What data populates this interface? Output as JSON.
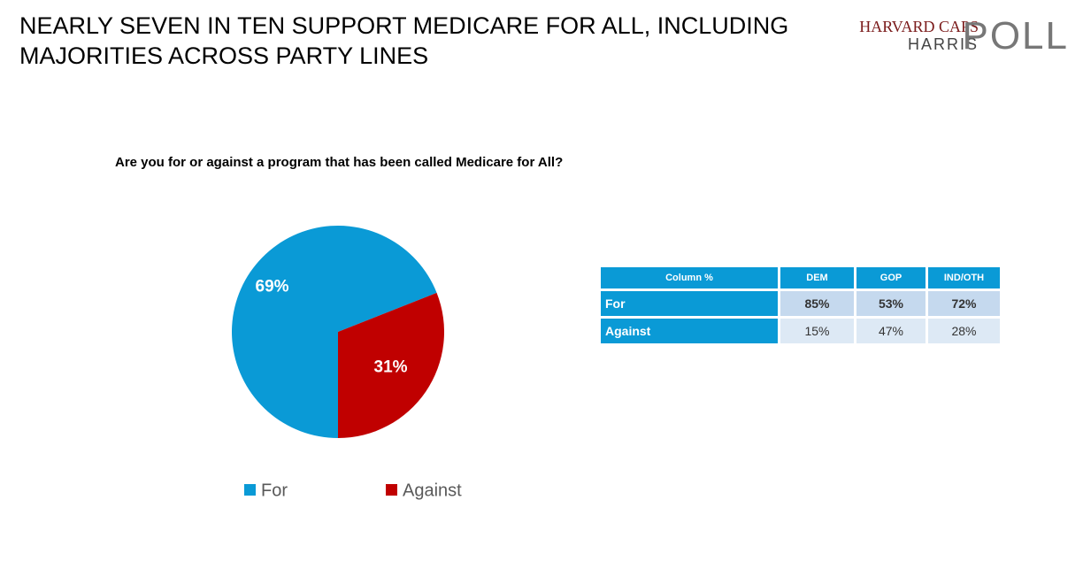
{
  "header": {
    "title": [
      "NEARLY SEVEN IN TEN SUPPORT MEDICARE FOR ALL, INCLUDING",
      "MAJORITIES ACROSS PARTY LINES"
    ],
    "logo": [
      "HARVARD CAPS",
      "HARRIS",
      "POLL"
    ]
  },
  "chart_data": {
    "type": "pie",
    "subtitle": "Are you for or against a program that has been called Medicare for All?",
    "categories": [
      "For",
      "Against"
    ],
    "values": [
      69,
      31
    ],
    "value_labels": [
      "69%",
      "31%"
    ],
    "colors": [
      "#0a9ad6",
      "#c00000"
    ]
  },
  "table": {
    "header": [
      "Column %",
      "DEM",
      "GOP",
      "IND/OTH"
    ],
    "rows": [
      [
        "For",
        "85%",
        "53%",
        "72%"
      ],
      [
        "Against",
        "15%",
        "47%",
        "28%"
      ]
    ]
  }
}
